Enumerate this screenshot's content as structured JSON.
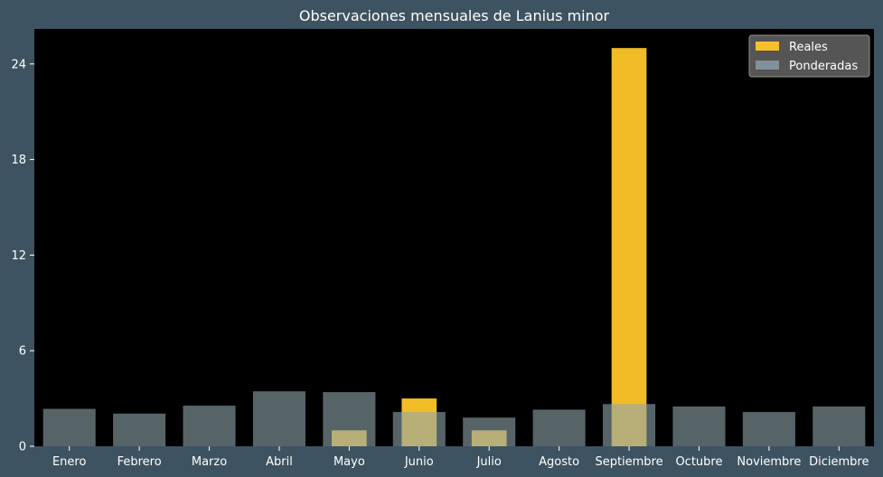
{
  "chart_data": {
    "type": "bar",
    "title": "Observaciones mensuales de Lanius minor",
    "xlabel": "",
    "ylabel": "",
    "categories": [
      "Enero",
      "Febrero",
      "Marzo",
      "Abril",
      "Mayo",
      "Junio",
      "Julio",
      "Agosto",
      "Septiembre",
      "Octubre",
      "Noviembre",
      "Diciembre"
    ],
    "series": [
      {
        "name": "Reales",
        "values": [
          0,
          0,
          0,
          0,
          1,
          3,
          1,
          0,
          25,
          0,
          0,
          0
        ],
        "color": "#ffc629"
      },
      {
        "name": "Ponderadas",
        "values": [
          2.35,
          2.05,
          2.55,
          3.45,
          3.4,
          2.15,
          1.8,
          2.3,
          2.65,
          2.5,
          2.15,
          2.5
        ],
        "color": "#8fa6ad"
      }
    ],
    "ylim": [
      0,
      26.2
    ],
    "yticks": [
      0,
      6,
      12,
      18,
      24
    ],
    "legend_position": "top-right",
    "grid": false
  },
  "colors": {
    "background": "#3e5361",
    "plot_background": "#000000",
    "text": "#ffffff",
    "legend_background": "#5a5a5a"
  }
}
